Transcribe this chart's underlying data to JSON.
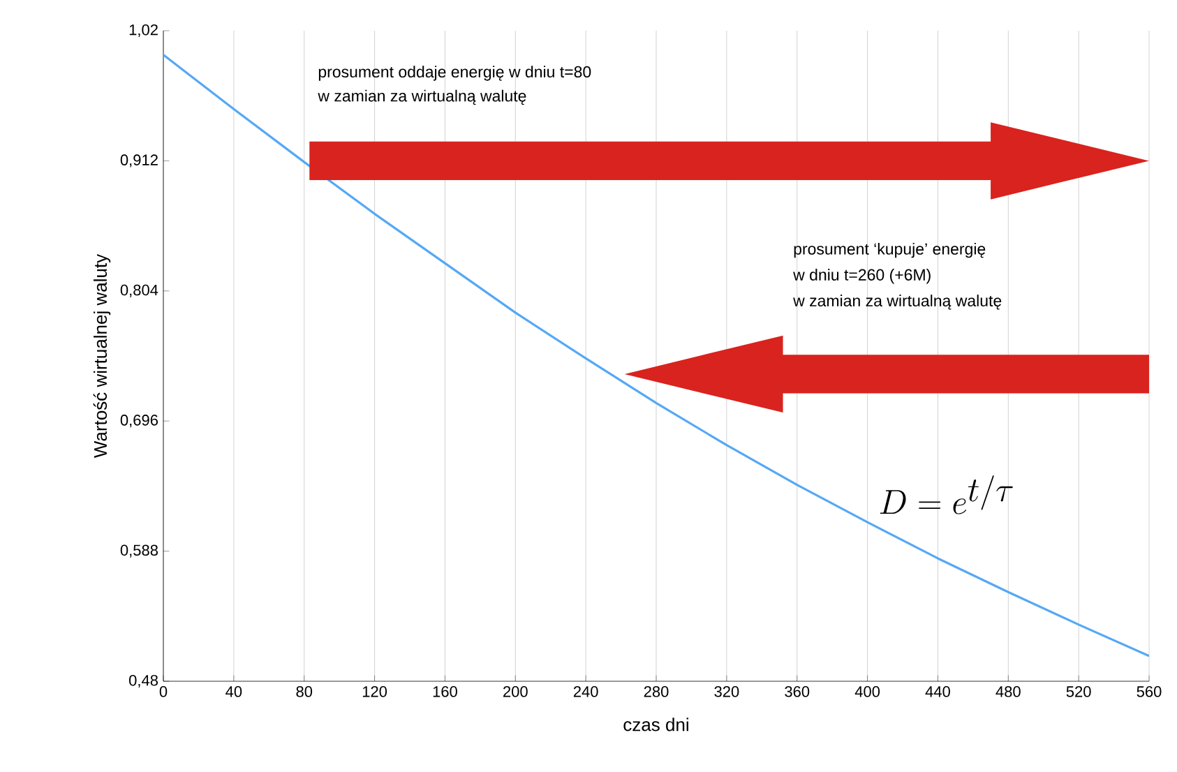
{
  "chart_data": {
    "type": "line",
    "xlabel": "czas dni",
    "ylabel": "Wartość wirtualnej waluty",
    "x": [
      0,
      40,
      80,
      120,
      160,
      200,
      240,
      280,
      320,
      360,
      400,
      440,
      480,
      520,
      560
    ],
    "series": [
      {
        "color": "#55a8f5",
        "values": [
          1.0,
          0.955,
          0.911,
          0.868,
          0.827,
          0.786,
          0.748,
          0.711,
          0.676,
          0.643,
          0.612,
          0.582,
          0.554,
          0.527,
          0.501
        ]
      }
    ],
    "xlim": [
      0,
      560
    ],
    "ylim": [
      0.48,
      1.02
    ],
    "xticks": [
      0,
      40,
      80,
      120,
      160,
      200,
      240,
      280,
      320,
      360,
      400,
      440,
      480,
      520,
      560
    ],
    "yticks": [
      {
        "value": 0.48,
        "label": "0,48"
      },
      {
        "value": 0.588,
        "label": "0,588"
      },
      {
        "value": 0.696,
        "label": "0,696"
      },
      {
        "value": 0.804,
        "label": "0,804"
      },
      {
        "value": 0.912,
        "label": "0,912"
      },
      {
        "value": 1.02,
        "label": "1,02"
      }
    ],
    "grid": "x",
    "marker": "none",
    "line_style": "solid",
    "annotations": [
      "prosument oddaje energię w dniu t=80",
      "w zamian za wirtualną walutę",
      "prosument ‘kupuje’ energię",
      "w dniu t=260 (+6M)",
      "w zamian za wirtualną walutę",
      "D = e^{t/\\tau}"
    ]
  }
}
